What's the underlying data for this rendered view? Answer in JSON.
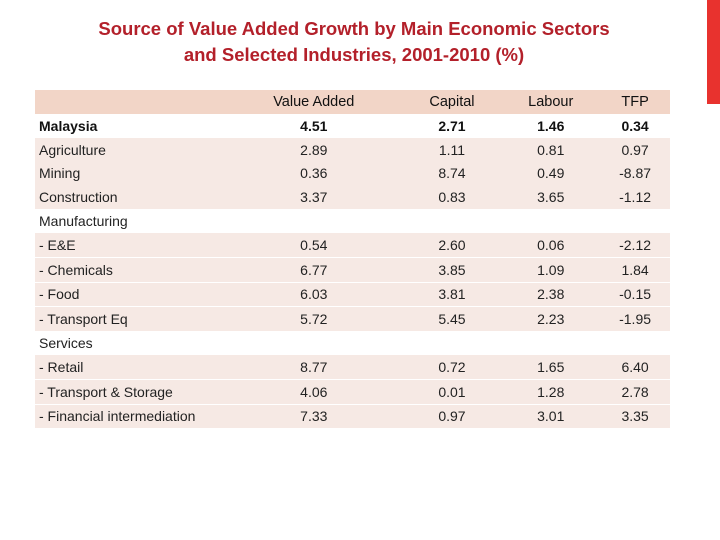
{
  "title": {
    "line1": "Source of Value Added Growth  by Main Economic Sectors",
    "line2": "and Selected Industries, 2001-2010 (%)"
  },
  "colors": {
    "title": "#b3202a",
    "accent_bar": "#e8322e",
    "header_bg": "#f2d5c7",
    "band_bg": "#f6e9e4"
  },
  "table": {
    "headers": [
      "",
      "Value Added",
      "Capital",
      "Labour",
      "TFP"
    ],
    "rows": [
      {
        "label": "Malaysia",
        "values": [
          "4.51",
          "2.71",
          "1.46",
          "0.34"
        ]
      },
      {
        "label": "Agriculture",
        "values": [
          "2.89",
          "1.11",
          "0.81",
          "0.97"
        ]
      },
      {
        "label": "Mining",
        "values": [
          "0.36",
          "8.74",
          "0.49",
          "-8.87"
        ]
      },
      {
        "label": "Construction",
        "values": [
          "3.37",
          "0.83",
          "3.65",
          "-1.12"
        ]
      },
      {
        "label": "Manufacturing",
        "values": [
          "",
          "",
          "",
          ""
        ]
      },
      {
        "label": "- E&E",
        "values": [
          "0.54",
          "2.60",
          "0.06",
          "-2.12"
        ]
      },
      {
        "label": "- Chemicals",
        "values": [
          "6.77",
          "3.85",
          "1.09",
          "1.84"
        ]
      },
      {
        "label": "- Food",
        "values": [
          "6.03",
          "3.81",
          "2.38",
          "-0.15"
        ]
      },
      {
        "label": "- Transport Eq",
        "values": [
          "5.72",
          "5.45",
          "2.23",
          "-1.95"
        ]
      },
      {
        "label": "Services",
        "values": [
          "",
          "",
          "",
          ""
        ]
      },
      {
        "label": "- Retail",
        "values": [
          "8.77",
          "0.72",
          "1.65",
          "6.40"
        ]
      },
      {
        "label": "- Transport & Storage",
        "values": [
          "4.06",
          "0.01",
          "1.28",
          "2.78"
        ]
      },
      {
        "label": "- Financial intermediation",
        "values": [
          "7.33",
          "0.97",
          "3.01",
          "3.35"
        ]
      }
    ]
  }
}
